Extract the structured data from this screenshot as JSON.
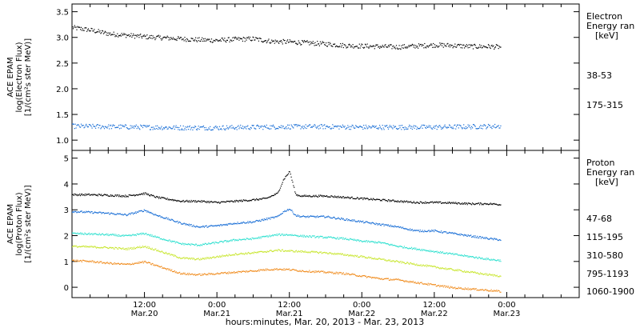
{
  "time_axis": {
    "title": "hours:minutes, Mar. 20, 2013 - Mar. 23, 2013",
    "range_hours": [
      0,
      84
    ],
    "ticks": [
      {
        "h": 12,
        "time": "12:00",
        "date": "Mar.20"
      },
      {
        "h": 24,
        "time": "0:00",
        "date": "Mar.21"
      },
      {
        "h": 36,
        "time": "12:00",
        "date": "Mar.21"
      },
      {
        "h": 48,
        "time": "0:00",
        "date": "Mar.22"
      },
      {
        "h": 60,
        "time": "12:00",
        "date": "Mar.22"
      },
      {
        "h": 72,
        "time": "0:00",
        "date": "Mar.23"
      }
    ]
  },
  "chart_data": [
    {
      "type": "scatter",
      "ylabel": [
        "ACE EPAM",
        "log(Electron Flux)",
        "[1/(cm²s ster MeV)]"
      ],
      "ylim": [
        0.8,
        3.65
      ],
      "yticks": [
        "1.0",
        "1.5",
        "2.0",
        "2.5",
        "3.0",
        "3.5"
      ],
      "legend_title": [
        "Electron",
        "Energy ran",
        "[keV]"
      ],
      "series": [
        {
          "name": "38-53",
          "color": "#000000",
          "x": [
            0,
            3,
            6,
            9,
            12,
            15,
            18,
            21,
            24,
            27,
            30,
            33,
            36,
            39,
            42,
            45,
            48,
            51,
            54,
            57,
            60,
            63,
            66,
            69,
            71
          ],
          "y": [
            3.2,
            3.15,
            3.08,
            3.05,
            3.02,
            3.0,
            2.98,
            2.96,
            2.95,
            2.97,
            2.98,
            2.93,
            2.92,
            2.9,
            2.88,
            2.85,
            2.84,
            2.83,
            2.82,
            2.84,
            2.86,
            2.85,
            2.83,
            2.83,
            2.82
          ]
        },
        {
          "name": "175-315",
          "color": "#1a6fd6",
          "x": [
            0,
            6,
            12,
            18,
            24,
            30,
            36,
            42,
            48,
            54,
            60,
            66,
            71
          ],
          "y": [
            1.28,
            1.27,
            1.26,
            1.25,
            1.25,
            1.26,
            1.27,
            1.27,
            1.26,
            1.26,
            1.26,
            1.27,
            1.28
          ]
        }
      ]
    },
    {
      "type": "scatter",
      "ylabel": [
        "ACE EPAM",
        "log(Proton Flux)",
        "[1/(cm²s ster MeV)]"
      ],
      "ylim": [
        -0.4,
        5.3
      ],
      "yticks": [
        "0",
        "1",
        "2",
        "3",
        "4",
        "5"
      ],
      "legend_title": [
        "Proton",
        "Energy ran",
        "[keV]"
      ],
      "series": [
        {
          "name": "47-68",
          "color": "#000000",
          "x": [
            0,
            3,
            6,
            9,
            12,
            14,
            18,
            21,
            24,
            27,
            30,
            32,
            34,
            35,
            36,
            37,
            38,
            42,
            45,
            48,
            51,
            54,
            57,
            60,
            63,
            66,
            69,
            71
          ],
          "y": [
            3.6,
            3.6,
            3.58,
            3.55,
            3.65,
            3.5,
            3.35,
            3.35,
            3.3,
            3.35,
            3.4,
            3.45,
            3.65,
            4.2,
            4.5,
            3.6,
            3.55,
            3.55,
            3.5,
            3.45,
            3.4,
            3.35,
            3.3,
            3.3,
            3.28,
            3.25,
            3.25,
            3.22
          ]
        },
        {
          "name": "115-195",
          "color": "#1a6fd6",
          "x": [
            0,
            3,
            6,
            9,
            12,
            14,
            18,
            21,
            24,
            27,
            30,
            32,
            34,
            35,
            36,
            37,
            38,
            42,
            45,
            48,
            51,
            54,
            57,
            60,
            63,
            66,
            69,
            71
          ],
          "y": [
            2.95,
            2.92,
            2.88,
            2.82,
            3.0,
            2.8,
            2.5,
            2.35,
            2.4,
            2.5,
            2.55,
            2.65,
            2.75,
            2.95,
            3.05,
            2.8,
            2.75,
            2.75,
            2.65,
            2.55,
            2.45,
            2.35,
            2.2,
            2.2,
            2.1,
            2.0,
            1.9,
            1.85
          ]
        },
        {
          "name": "310-580",
          "color": "#2ee0cf",
          "x": [
            0,
            3,
            6,
            9,
            12,
            14,
            18,
            21,
            24,
            27,
            30,
            32,
            34,
            36,
            38,
            42,
            45,
            48,
            51,
            54,
            57,
            60,
            63,
            66,
            69,
            71
          ],
          "y": [
            2.1,
            2.08,
            2.05,
            2.0,
            2.1,
            1.95,
            1.7,
            1.65,
            1.75,
            1.85,
            1.9,
            1.98,
            2.05,
            2.05,
            2.0,
            1.95,
            1.9,
            1.8,
            1.75,
            1.6,
            1.5,
            1.4,
            1.3,
            1.2,
            1.1,
            1.05
          ]
        },
        {
          "name": "795-1193",
          "color": "#c8e62e",
          "x": [
            0,
            3,
            6,
            9,
            12,
            14,
            18,
            21,
            24,
            27,
            30,
            32,
            34,
            36,
            38,
            42,
            45,
            48,
            51,
            54,
            57,
            60,
            63,
            66,
            69,
            71
          ],
          "y": [
            1.6,
            1.58,
            1.55,
            1.5,
            1.6,
            1.45,
            1.15,
            1.1,
            1.2,
            1.3,
            1.35,
            1.4,
            1.45,
            1.42,
            1.4,
            1.35,
            1.28,
            1.2,
            1.1,
            1.0,
            0.9,
            0.8,
            0.7,
            0.6,
            0.5,
            0.45
          ]
        },
        {
          "name": "1060-1900",
          "color": "#f08c1e",
          "x": [
            0,
            3,
            6,
            9,
            12,
            14,
            18,
            21,
            24,
            27,
            30,
            32,
            34,
            36,
            38,
            42,
            45,
            48,
            51,
            54,
            57,
            60,
            63,
            66,
            69,
            71
          ],
          "y": [
            1.05,
            1.02,
            0.95,
            0.9,
            1.0,
            0.85,
            0.55,
            0.5,
            0.55,
            0.6,
            0.65,
            0.7,
            0.72,
            0.7,
            0.65,
            0.6,
            0.55,
            0.45,
            0.35,
            0.3,
            0.2,
            0.1,
            0.0,
            -0.05,
            -0.1,
            -0.15
          ]
        }
      ]
    }
  ]
}
